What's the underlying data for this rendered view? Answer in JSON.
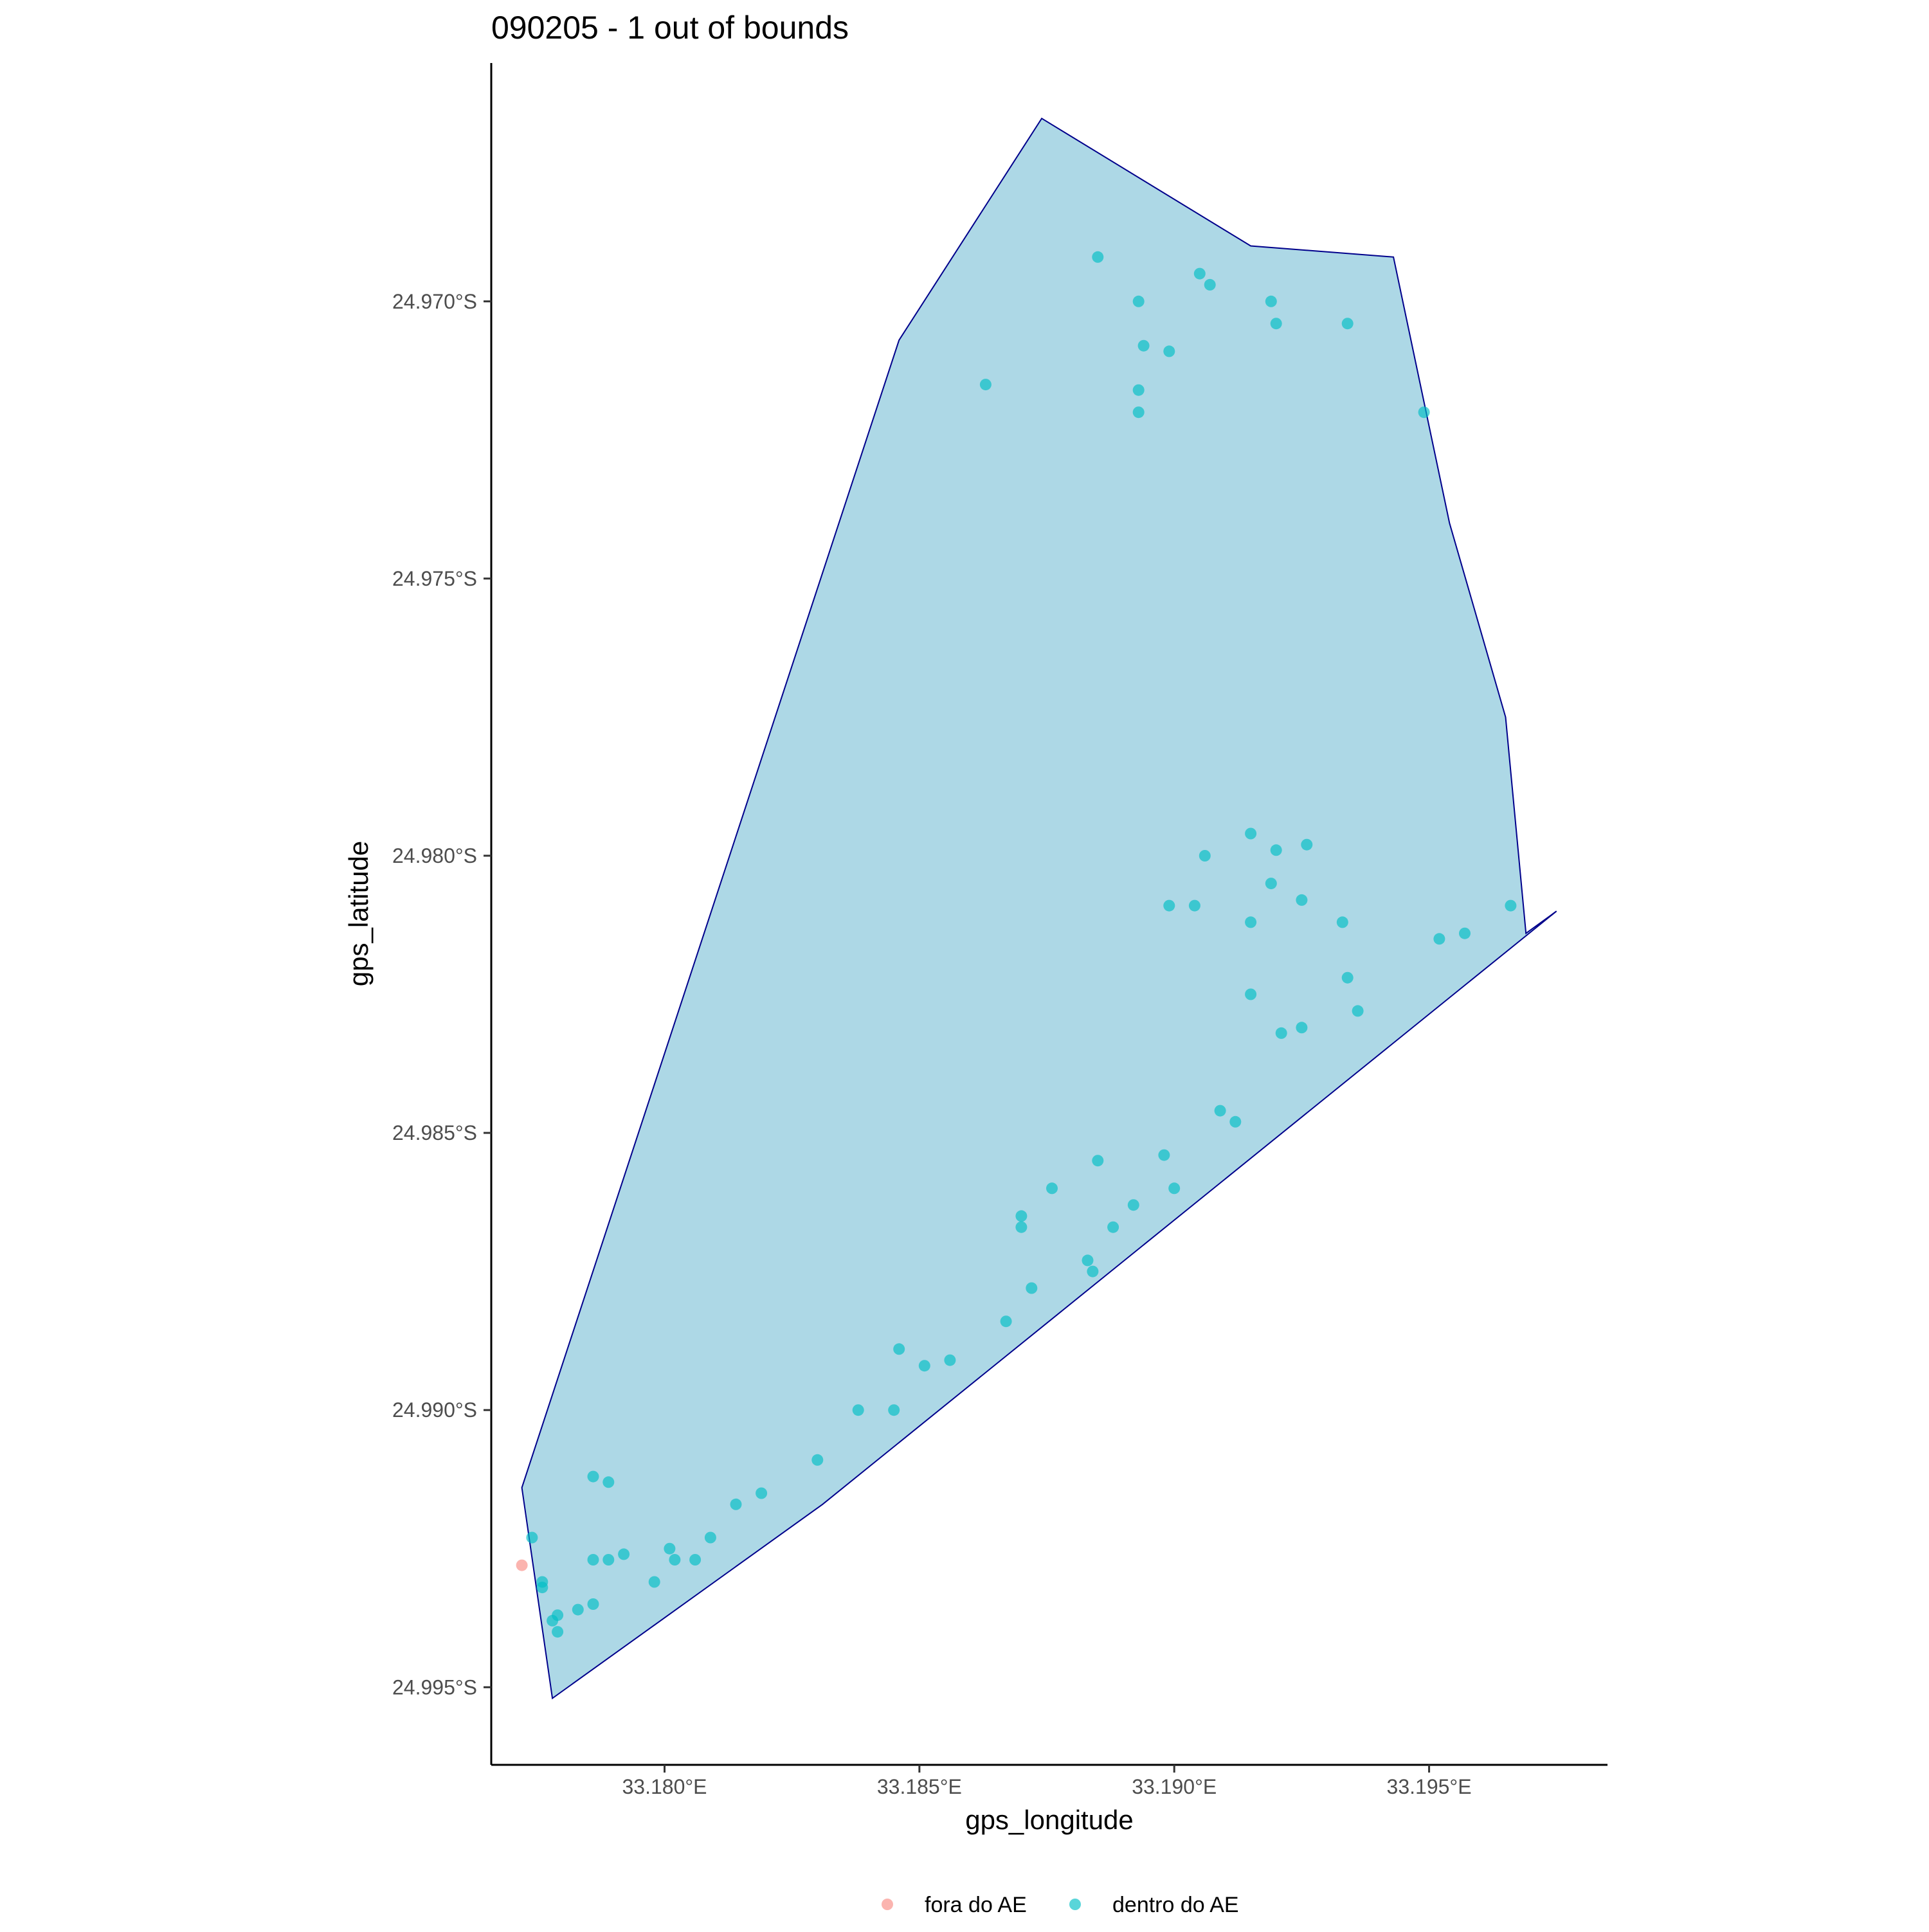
{
  "chart_data": {
    "type": "scatter",
    "title": "090205 - 1 out of bounds",
    "xlabel": "gps_longitude",
    "ylabel": "gps_latitude",
    "xlim": [
      33.1766,
      33.1985
    ],
    "ylim": [
      -24.9964,
      -24.9657
    ],
    "x_ticks": [
      33.18,
      33.185,
      33.19,
      33.195
    ],
    "x_tick_labels": [
      "33.180°E",
      "33.185°E",
      "33.190°E",
      "33.195°E"
    ],
    "y_ticks": [
      -24.97,
      -24.975,
      -24.98,
      -24.985,
      -24.99,
      -24.995
    ],
    "y_tick_labels": [
      "24.970°S",
      "24.975°S",
      "24.980°S",
      "24.985°S",
      "24.990°S",
      "24.995°S"
    ],
    "grid": false,
    "legend_position": "bottom",
    "colors": {
      "polygon_fill": "#add8e6",
      "polygon_stroke": "#00008b",
      "outside": "#f8766d",
      "inside": "#00bfc4",
      "axis": "#000000"
    },
    "polygon": [
      [
        33.1874,
        -24.9667
      ],
      [
        33.1915,
        -24.969
      ],
      [
        33.1943,
        -24.9692
      ],
      [
        33.1954,
        -24.974
      ],
      [
        33.1965,
        -24.9775
      ],
      [
        33.1969,
        -24.9814
      ],
      [
        33.1975,
        -24.981
      ],
      [
        33.1831,
        -24.9917
      ],
      [
        33.1778,
        -24.9952
      ],
      [
        33.1772,
        -24.9914
      ],
      [
        33.1846,
        -24.9707
      ]
    ],
    "series": [
      {
        "name": "fora do AE",
        "points": [
          [
            33.1772,
            -24.9928
          ]
        ]
      },
      {
        "name": "dentro do AE",
        "points": [
          [
            33.1885,
            -24.9692
          ],
          [
            33.1893,
            -24.97
          ],
          [
            33.1905,
            -24.9695
          ],
          [
            33.1907,
            -24.9697
          ],
          [
            33.1919,
            -24.97
          ],
          [
            33.192,
            -24.9704
          ],
          [
            33.1934,
            -24.9704
          ],
          [
            33.1894,
            -24.9708
          ],
          [
            33.1899,
            -24.9709
          ],
          [
            33.1863,
            -24.9715
          ],
          [
            33.1893,
            -24.9716
          ],
          [
            33.1893,
            -24.972
          ],
          [
            33.1949,
            -24.972
          ],
          [
            33.1915,
            -24.9796
          ],
          [
            33.1926,
            -24.9798
          ],
          [
            33.192,
            -24.9799
          ],
          [
            33.1906,
            -24.98
          ],
          [
            33.1919,
            -24.9805
          ],
          [
            33.1925,
            -24.9808
          ],
          [
            33.1899,
            -24.9809
          ],
          [
            33.1904,
            -24.9809
          ],
          [
            33.1966,
            -24.9809
          ],
          [
            33.1915,
            -24.9812
          ],
          [
            33.1933,
            -24.9812
          ],
          [
            33.1957,
            -24.9814
          ],
          [
            33.1952,
            -24.9815
          ],
          [
            33.1934,
            -24.9822
          ],
          [
            33.1915,
            -24.9825
          ],
          [
            33.1936,
            -24.9828
          ],
          [
            33.1925,
            -24.9831
          ],
          [
            33.1921,
            -24.9832
          ],
          [
            33.1909,
            -24.9846
          ],
          [
            33.1912,
            -24.9848
          ],
          [
            33.1898,
            -24.9854
          ],
          [
            33.1885,
            -24.9855
          ],
          [
            33.1876,
            -24.986
          ],
          [
            33.19,
            -24.986
          ],
          [
            33.1892,
            -24.9863
          ],
          [
            33.187,
            -24.9865
          ],
          [
            33.187,
            -24.9867
          ],
          [
            33.1888,
            -24.9867
          ],
          [
            33.1883,
            -24.9873
          ],
          [
            33.1884,
            -24.9875
          ],
          [
            33.1872,
            -24.9878
          ],
          [
            33.1867,
            -24.9884
          ],
          [
            33.1846,
            -24.9889
          ],
          [
            33.1856,
            -24.9891
          ],
          [
            33.1851,
            -24.9892
          ],
          [
            33.1838,
            -24.99
          ],
          [
            33.1845,
            -24.99
          ],
          [
            33.183,
            -24.9909
          ],
          [
            33.1786,
            -24.9912
          ],
          [
            33.1789,
            -24.9913
          ],
          [
            33.1819,
            -24.9915
          ],
          [
            33.1814,
            -24.9917
          ],
          [
            33.1809,
            -24.9923
          ],
          [
            33.1774,
            -24.9923
          ],
          [
            33.1801,
            -24.9925
          ],
          [
            33.1792,
            -24.9926
          ],
          [
            33.1786,
            -24.9927
          ],
          [
            33.1789,
            -24.9927
          ],
          [
            33.1802,
            -24.9927
          ],
          [
            33.1806,
            -24.9927
          ],
          [
            33.1776,
            -24.9931
          ],
          [
            33.1798,
            -24.9931
          ],
          [
            33.1776,
            -24.9932
          ],
          [
            33.1786,
            -24.9935
          ],
          [
            33.1783,
            -24.9936
          ],
          [
            33.1779,
            -24.9937
          ],
          [
            33.1778,
            -24.9938
          ],
          [
            33.1779,
            -24.994
          ]
        ]
      }
    ]
  }
}
